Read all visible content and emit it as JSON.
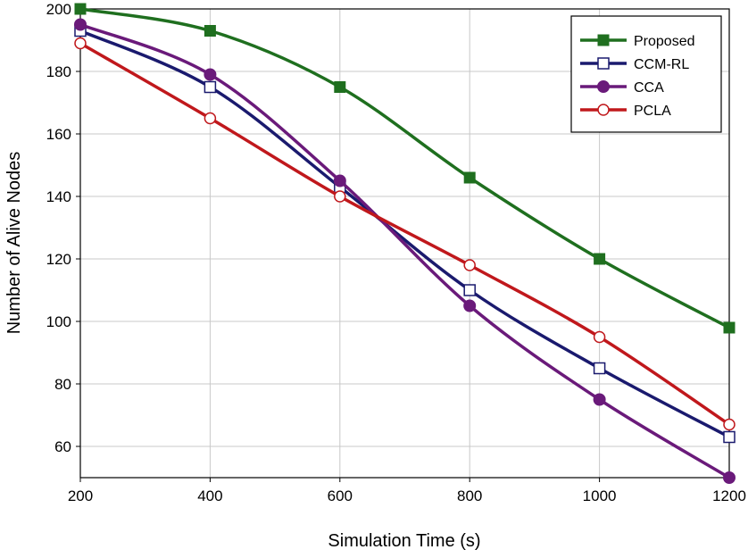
{
  "chart_data": {
    "type": "line",
    "title": "",
    "xlabel": "Simulation Time (s)",
    "ylabel": "Number of Alive Nodes",
    "x": [
      200,
      400,
      600,
      800,
      1000,
      1200
    ],
    "xlim": [
      200,
      1200
    ],
    "ylim": [
      50,
      200
    ],
    "xticks": [
      200,
      400,
      600,
      800,
      1000,
      1200
    ],
    "yticks": [
      60,
      80,
      100,
      120,
      140,
      160,
      180,
      200
    ],
    "grid": true,
    "legend_position": "top-right",
    "series": [
      {
        "name": "Proposed",
        "values": [
          200,
          193,
          175,
          146,
          120,
          98
        ],
        "color": "#1f6f1f",
        "marker": "filled-square"
      },
      {
        "name": "CCM-RL",
        "values": [
          193,
          175,
          143,
          110,
          85,
          63
        ],
        "color": "#1a1a6e",
        "marker": "open-square"
      },
      {
        "name": "CCA",
        "values": [
          195,
          179,
          145,
          105,
          75,
          50
        ],
        "color": "#6a1a7a",
        "marker": "filled-circle"
      },
      {
        "name": "PCLA",
        "values": [
          189,
          165,
          140,
          118,
          95,
          67
        ],
        "color": "#c0181c",
        "marker": "open-circle"
      }
    ]
  }
}
